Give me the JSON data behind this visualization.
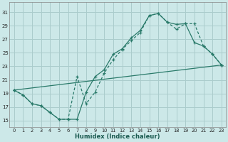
{
  "xlabel": "Humidex (Indice chaleur)",
  "bg_color": "#cce8e8",
  "grid_color": "#aacccc",
  "line_color": "#2a7a6a",
  "xlim": [
    -0.5,
    23.5
  ],
  "ylim": [
    14.0,
    32.5
  ],
  "xticks": [
    0,
    1,
    2,
    3,
    4,
    5,
    6,
    7,
    8,
    9,
    10,
    11,
    12,
    13,
    14,
    15,
    16,
    17,
    18,
    19,
    20,
    21,
    22,
    23
  ],
  "yticks": [
    15,
    17,
    19,
    21,
    23,
    25,
    27,
    29,
    31
  ],
  "curve1_x": [
    0,
    1,
    2,
    3,
    4,
    5,
    6,
    7,
    8,
    9,
    10,
    11,
    12,
    13,
    14,
    15,
    16,
    17,
    18,
    19,
    20,
    21,
    22,
    23
  ],
  "curve1_y": [
    19.5,
    18.8,
    17.5,
    17.2,
    16.2,
    15.2,
    15.2,
    15.2,
    19.2,
    21.5,
    22.5,
    24.8,
    25.6,
    27.2,
    28.3,
    30.5,
    30.8,
    29.5,
    29.2,
    29.3,
    26.5,
    26.0,
    24.8,
    23.2
  ],
  "curve2_x": [
    0,
    1,
    2,
    3,
    4,
    5,
    6,
    7,
    8,
    9,
    10,
    11,
    12,
    13,
    14,
    15,
    16,
    17,
    18,
    19,
    20,
    21,
    22,
    23
  ],
  "curve2_y": [
    19.5,
    18.8,
    17.5,
    17.2,
    16.2,
    15.2,
    15.2,
    21.5,
    17.5,
    19.2,
    22.0,
    24.0,
    25.5,
    26.8,
    28.0,
    30.5,
    30.8,
    29.5,
    28.5,
    29.3,
    29.3,
    26.0,
    24.8,
    23.2
  ],
  "curve3_x": [
    0,
    23
  ],
  "curve3_y": [
    19.5,
    23.2
  ]
}
